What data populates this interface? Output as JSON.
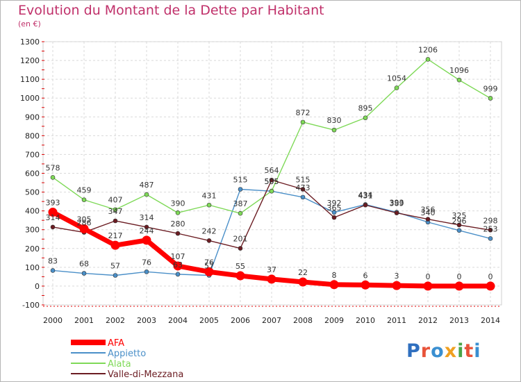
{
  "header": {
    "title": "Evolution du Montant de la Dette par Habitant",
    "unit": "(en €)"
  },
  "logo": {
    "text": "Proxiti"
  },
  "chart_data": {
    "type": "line",
    "title": "Evolution du Montant de la Dette par Habitant",
    "ylabel": "(en €)",
    "x": [
      2000,
      2001,
      2002,
      2003,
      2004,
      2005,
      2006,
      2007,
      2008,
      2009,
      2010,
      2011,
      2012,
      2013,
      2014
    ],
    "ylim": [
      -100,
      1300
    ],
    "yticks": [
      -100,
      0,
      100,
      200,
      300,
      400,
      500,
      600,
      700,
      800,
      900,
      1000,
      1100,
      1200,
      1300
    ],
    "grid": true,
    "legend_position": "bottom-left",
    "series": [
      {
        "name": "AFA",
        "color": "#ff0000",
        "values": [
          393,
          305,
          217,
          244,
          107,
          76,
          55,
          37,
          22,
          8,
          6,
          3,
          0,
          0,
          0
        ]
      },
      {
        "name": "Appietto",
        "color": "#4a8fc8",
        "values": [
          83,
          68,
          57,
          76,
          63,
          57,
          515,
          505,
          473,
          392,
          434,
          393,
          340,
          296,
          253
        ]
      },
      {
        "name": "Alata",
        "color": "#7ed957",
        "values": [
          578,
          459,
          407,
          487,
          390,
          431,
          387,
          505,
          872,
          830,
          895,
          1054,
          1206,
          1096,
          999
        ]
      },
      {
        "name": "Valle-di-Mezzana",
        "color": "#6b1c22",
        "values": [
          314,
          286,
          347,
          314,
          280,
          242,
          201,
          564,
          515,
          365,
          431,
          389,
          356,
          325,
          298
        ]
      }
    ]
  }
}
